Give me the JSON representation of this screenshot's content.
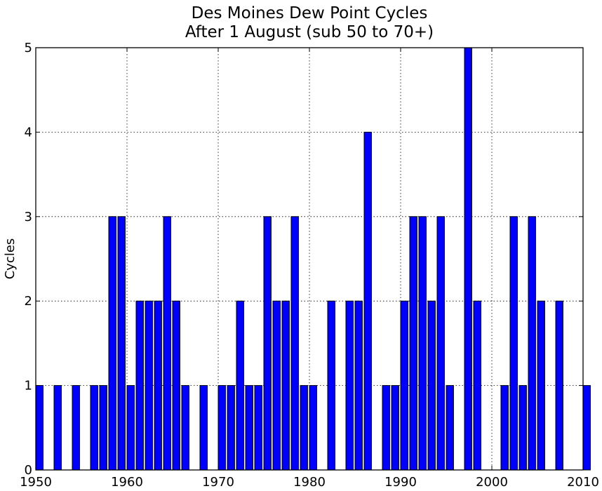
{
  "chart_data": {
    "type": "bar",
    "title": "Des Moines Dew Point Cycles\nAfter 1 August (sub 50 to 70+)",
    "xlabel": "",
    "ylabel": "Cycles",
    "xlim": [
      1950,
      2010
    ],
    "ylim": [
      0,
      5
    ],
    "xticks": [
      "1950",
      "1960",
      "1970",
      "1980",
      "1990",
      "2000",
      "2010"
    ],
    "yticks": [
      "0",
      "1",
      "2",
      "3",
      "4",
      "5"
    ],
    "grid": true,
    "bar_color": "#0000ff",
    "x": [
      1950,
      1952,
      1954,
      1956,
      1957,
      1958,
      1959,
      1960,
      1961,
      1962,
      1963,
      1964,
      1965,
      1966,
      1968,
      1970,
      1971,
      1972,
      1973,
      1974,
      1975,
      1976,
      1977,
      1978,
      1979,
      1980,
      1982,
      1984,
      1985,
      1986,
      1988,
      1989,
      1990,
      1991,
      1992,
      1993,
      1994,
      1995,
      1997,
      1998,
      2001,
      2002,
      2003,
      2004,
      2005,
      2007,
      2010
    ],
    "values": [
      1,
      1,
      1,
      1,
      1,
      3,
      3,
      1,
      2,
      2,
      2,
      3,
      2,
      1,
      1,
      1,
      1,
      2,
      1,
      1,
      3,
      2,
      2,
      3,
      1,
      1,
      2,
      2,
      2,
      4,
      1,
      1,
      2,
      3,
      3,
      2,
      3,
      1,
      5,
      2,
      1,
      3,
      1,
      3,
      2,
      2,
      1
    ]
  }
}
